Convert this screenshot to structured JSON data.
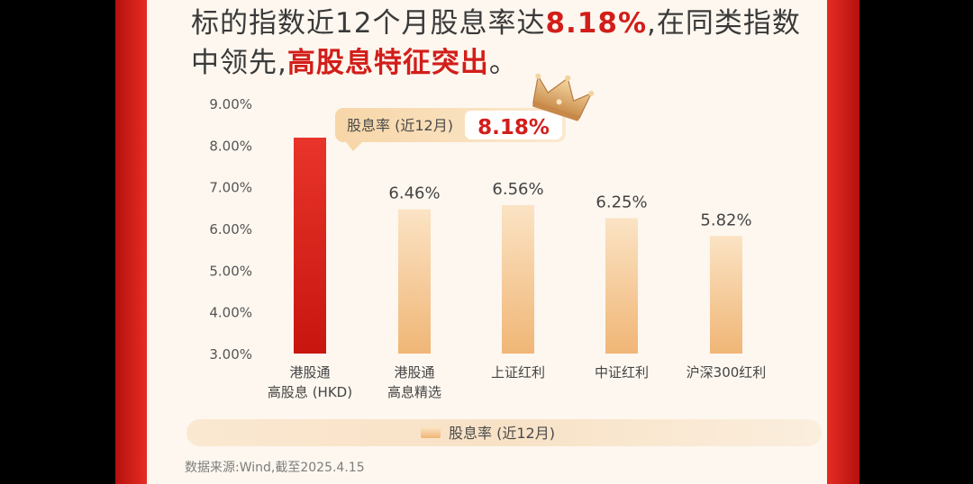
{
  "headline": {
    "line1_pre": "标的指数近12个月股息率达",
    "line1_highlight": "8.18%",
    "line1_post": ",在同类指数",
    "line2_pre": "中领先,",
    "line2_highlight": "高股息特征突出",
    "line2_post": "。"
  },
  "callout": {
    "label": "股息率 (近12月)",
    "value": "8.18%"
  },
  "source": "数据来源:Wind,截至2025.4.15",
  "colors": {
    "highlight_red": "#d21e1a",
    "bar_red": "#e02a20",
    "bar_gold": "#f4c48c",
    "frame_red": "#e32b22"
  },
  "chart_data": {
    "type": "bar",
    "categories": [
      [
        "港股通",
        "高股息 (HKD)"
      ],
      [
        "港股通",
        "高息精选"
      ],
      [
        "上证红利"
      ],
      [
        "中证红利"
      ],
      [
        "沪深300红利"
      ]
    ],
    "series": [
      {
        "name": "股息率 (近12月)",
        "values": [
          8.18,
          6.46,
          6.56,
          6.25,
          5.82
        ]
      }
    ],
    "data_labels": [
      "",
      "6.46%",
      "6.56%",
      "6.25%",
      "5.82%"
    ],
    "y_ticks": [
      "3.00%",
      "4.00%",
      "5.00%",
      "6.00%",
      "7.00%",
      "8.00%",
      "9.00%"
    ],
    "ylim": [
      3,
      9
    ],
    "grid": false,
    "legend_position": "bottom"
  }
}
